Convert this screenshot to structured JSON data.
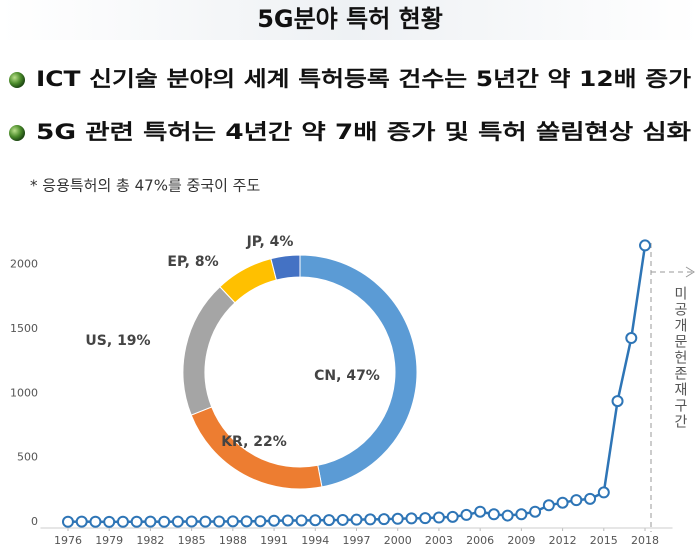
{
  "title": "5G분야 특허 현황",
  "bullets": [
    "ICT 신기술 분야의 세계 특허등록 건수는 5년간 약 12배 증가",
    "5G 관련 특허는 4년간 약 7배 증가 및 특허 쏠림현상 심화"
  ],
  "note": "* 응용특허의 총 47%를 중국이 주도",
  "chart_data": [
    {
      "type": "line",
      "x": [
        1976,
        1977,
        1978,
        1979,
        1980,
        1981,
        1982,
        1983,
        1984,
        1985,
        1986,
        1987,
        1988,
        1989,
        1990,
        1991,
        1992,
        1993,
        1994,
        1995,
        1996,
        1997,
        1998,
        1999,
        2000,
        2001,
        2002,
        2003,
        2004,
        2005,
        2006,
        2007,
        2008,
        2009,
        2010,
        2011,
        2012,
        2013,
        2014,
        2015,
        2016,
        2017,
        2018
      ],
      "values": [
        2,
        3,
        2,
        1,
        2,
        2,
        3,
        2,
        3,
        4,
        3,
        4,
        5,
        5,
        6,
        10,
        12,
        12,
        14,
        15,
        16,
        18,
        20,
        22,
        25,
        28,
        30,
        35,
        40,
        55,
        80,
        60,
        50,
        60,
        80,
        130,
        150,
        170,
        180,
        230,
        940,
        1430,
        2150
      ],
      "color": "#2e75b6",
      "xlim": [
        1974,
        2020
      ],
      "xticks": [
        1976,
        1979,
        1982,
        1985,
        1988,
        1991,
        1994,
        1997,
        2000,
        2003,
        2006,
        2009,
        2012,
        2015,
        2018
      ],
      "ylim": [
        0,
        2200
      ],
      "yticks": [
        0,
        500,
        1000,
        1500,
        2000
      ],
      "grid": false,
      "annotation": "미공개문헌존재구간"
    },
    {
      "type": "pie",
      "categories": [
        "CN",
        "KR",
        "US",
        "EP",
        "JP"
      ],
      "values": [
        47,
        22,
        19,
        8,
        4
      ],
      "value_labels": [
        "CN, 47%",
        "KR, 22%",
        "US, 19%",
        "EP, 8%",
        "JP, 4%"
      ],
      "colors": [
        "#5b9bd5",
        "#ed7d31",
        "#a5a5a5",
        "#ffc000",
        "#4472c4"
      ]
    }
  ]
}
